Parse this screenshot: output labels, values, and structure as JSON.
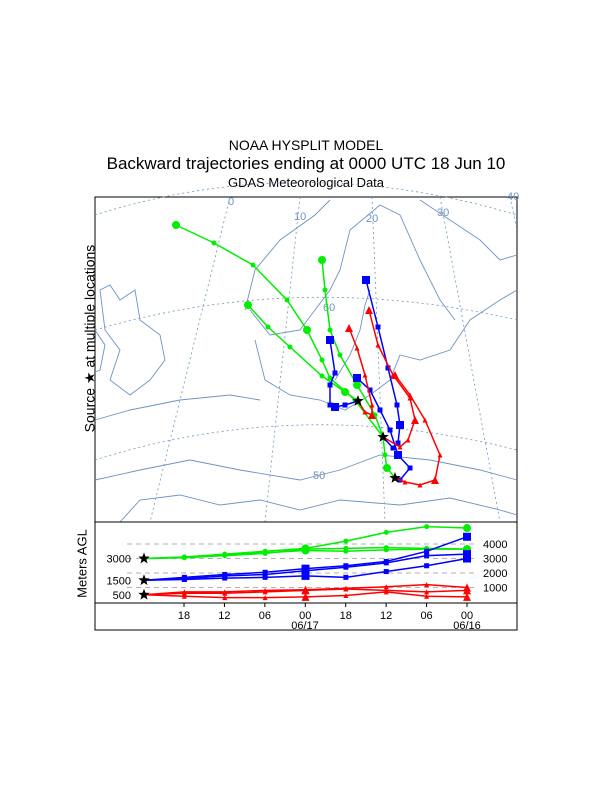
{
  "title": "NOAA HYSPLIT MODEL",
  "subtitle": "Backward trajectories ending at 0000 UTC 18 Jun 10",
  "data_source": "GDAS Meteorological Data",
  "source_label": "Source ★ at multiple locations",
  "map": {
    "lon_labels": [
      "0",
      "10",
      "20",
      "30",
      "40"
    ],
    "lat_labels": [
      "60",
      "50"
    ]
  },
  "colors": {
    "500": "#ff0000",
    "1500": "#0000ff",
    "3000": "#00ee00",
    "grid": "#6f93c0"
  },
  "chart_data": {
    "type": "line",
    "ylabel": "Meters AGL",
    "source_heights": [
      "3000",
      "1500",
      "500"
    ],
    "right_ticks": [
      "4000",
      "3000",
      "2000",
      "1000"
    ],
    "x_ticks": [
      "18",
      "12",
      "06",
      "00",
      "18",
      "12",
      "06",
      "00"
    ],
    "date_labels": [
      "06/17",
      "06/16"
    ],
    "hours_back": [
      0,
      6,
      12,
      18,
      24,
      30,
      36,
      42,
      48
    ],
    "series": [
      {
        "name": "green-1",
        "color": "#00ee00",
        "values": [
          3000,
          3100,
          3300,
          3500,
          3700,
          4200,
          4800,
          5200,
          5100
        ]
      },
      {
        "name": "green-2",
        "color": "#00ee00",
        "values": [
          3000,
          3100,
          3250,
          3400,
          3550,
          3500,
          3600,
          3650,
          3650
        ]
      },
      {
        "name": "green-3",
        "color": "#00ee00",
        "values": [
          3000,
          3050,
          3200,
          3350,
          3650,
          3700,
          3750,
          3700,
          3650
        ]
      },
      {
        "name": "blue-1",
        "color": "#0000ff",
        "values": [
          1500,
          1700,
          1900,
          2050,
          2300,
          2500,
          2800,
          3500,
          4500
        ]
      },
      {
        "name": "blue-2",
        "color": "#0000ff",
        "values": [
          1500,
          1600,
          1800,
          1900,
          2150,
          2400,
          2700,
          3200,
          3300
        ]
      },
      {
        "name": "blue-3",
        "color": "#0000ff",
        "values": [
          1500,
          1550,
          1650,
          1700,
          1800,
          1700,
          2100,
          2500,
          3000
        ]
      },
      {
        "name": "red-1",
        "color": "#ff0000",
        "values": [
          500,
          700,
          700,
          800,
          850,
          950,
          1050,
          1200,
          1000
        ]
      },
      {
        "name": "red-2",
        "color": "#ff0000",
        "values": [
          500,
          600,
          600,
          700,
          800,
          900,
          800,
          700,
          800
        ]
      },
      {
        "name": "red-3",
        "color": "#ff0000",
        "values": [
          500,
          400,
          300,
          300,
          350,
          450,
          700,
          400,
          350
        ]
      }
    ]
  }
}
